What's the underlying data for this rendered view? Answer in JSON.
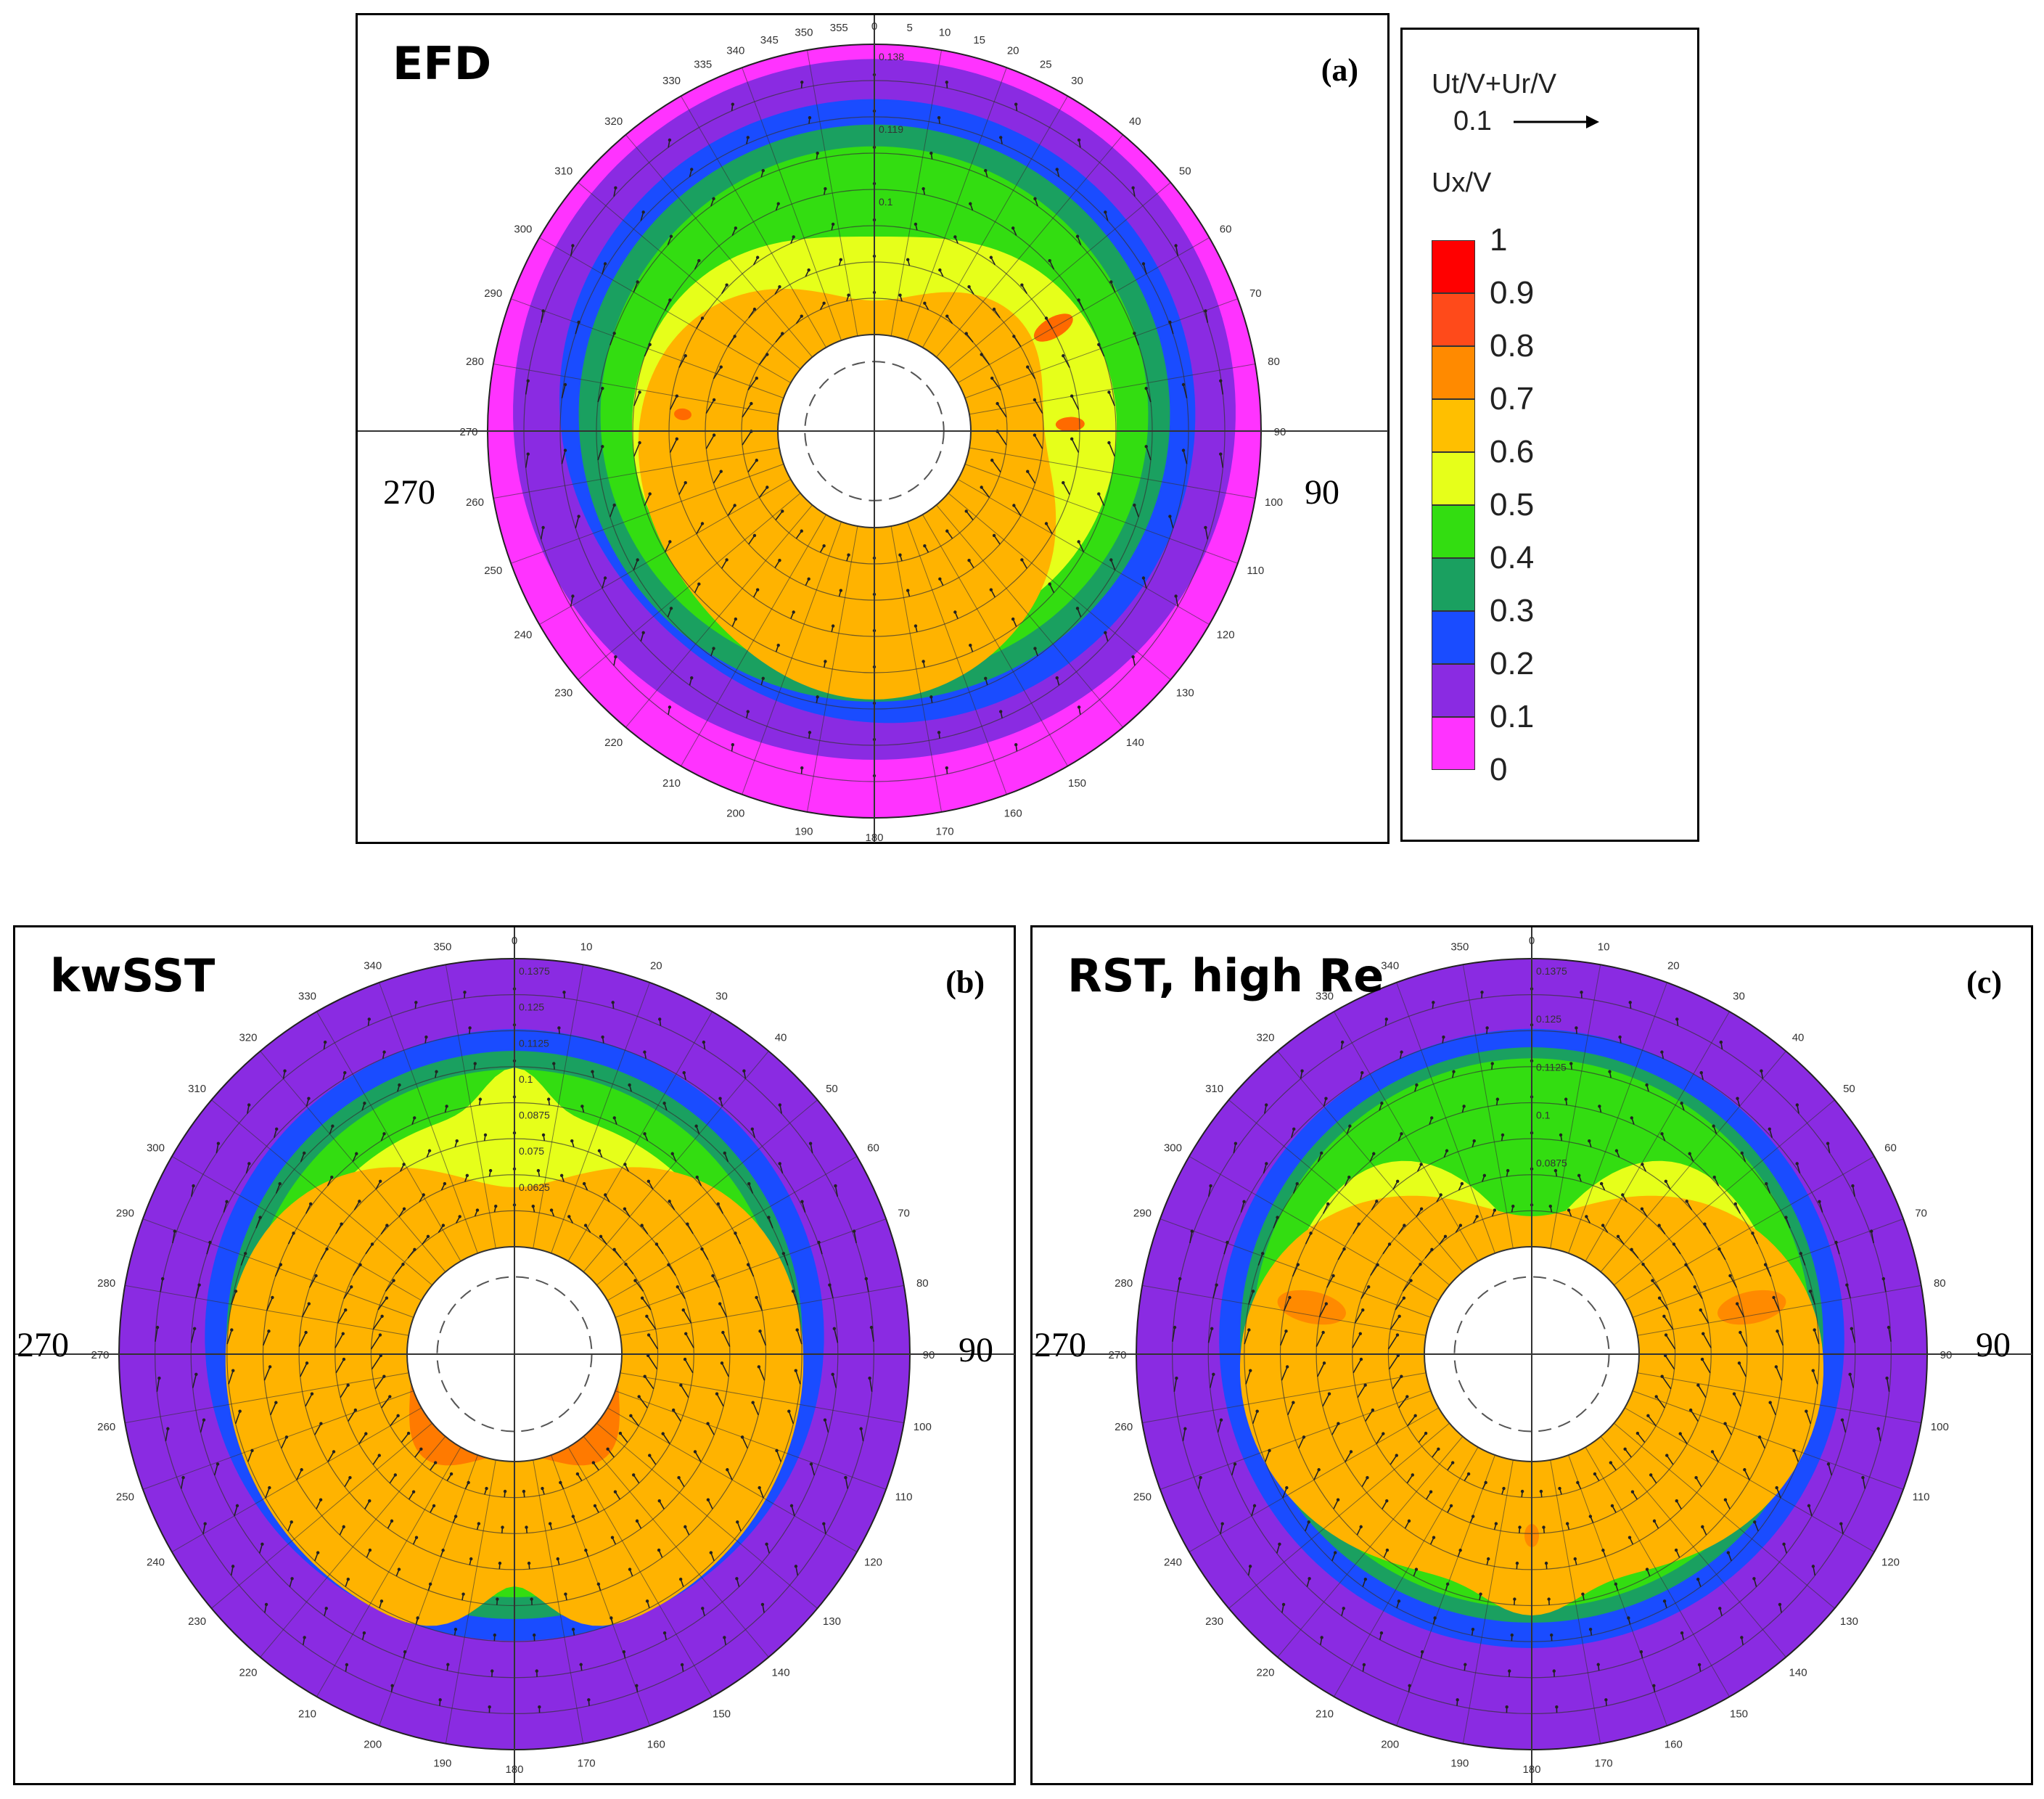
{
  "chart_data": [
    {
      "type": "heatmap",
      "panel": "a",
      "title": "EFD",
      "letter": "(a)",
      "left_label": "270",
      "right_label": "90",
      "angle_ticks": [
        0,
        5,
        10,
        15,
        20,
        25,
        30,
        40,
        50,
        60,
        70,
        80,
        90,
        100,
        110,
        120,
        130,
        140,
        150,
        160,
        170,
        180,
        190,
        200,
        210,
        220,
        230,
        240,
        250,
        260,
        270,
        280,
        290,
        300,
        310,
        320,
        330,
        335,
        340,
        345,
        350,
        355
      ],
      "radius_ticks": [
        "0.138",
        "0.119",
        "0.1"
      ],
      "contour_bands": [
        {
          "level": 0.0,
          "color": "#ff33ff"
        },
        {
          "level": 0.1,
          "color": "#8a2be2"
        },
        {
          "level": 0.2,
          "color": "#1a4cff"
        },
        {
          "level": 0.3,
          "color": "#1aa060"
        },
        {
          "level": 0.4,
          "color": "#33dd11"
        },
        {
          "level": 0.5,
          "color": "#e6ff1a"
        },
        {
          "level": 0.7,
          "color": "#ffb300"
        }
      ]
    },
    {
      "type": "heatmap",
      "panel": "b",
      "title": "kwSST",
      "letter": "(b)",
      "left_label": "270",
      "right_label": "90",
      "angle_ticks": [
        0,
        10,
        20,
        30,
        40,
        50,
        60,
        70,
        80,
        90,
        100,
        110,
        120,
        130,
        140,
        150,
        160,
        170,
        180,
        190,
        200,
        210,
        220,
        230,
        240,
        250,
        260,
        270,
        280,
        290,
        300,
        310,
        320,
        330,
        340,
        350
      ],
      "radius_ticks": [
        "0.1375",
        "0.125",
        "0.1125",
        "0.1",
        "0.0875",
        "0.075",
        "0.0625"
      ],
      "contour_bands": [
        {
          "level": 0.1,
          "color": "#8a2be2"
        },
        {
          "level": 0.2,
          "color": "#1a4cff"
        },
        {
          "level": 0.3,
          "color": "#1aa060"
        },
        {
          "level": 0.4,
          "color": "#33dd11"
        },
        {
          "level": 0.5,
          "color": "#e6ff1a"
        },
        {
          "level": 0.7,
          "color": "#ffb300"
        },
        {
          "level": 0.8,
          "color": "#ff7a00"
        }
      ]
    },
    {
      "type": "heatmap",
      "panel": "c",
      "title": "RST, high Re",
      "letter": "(c)",
      "left_label": "270",
      "right_label": "90",
      "angle_ticks": [
        0,
        10,
        20,
        30,
        40,
        50,
        60,
        70,
        80,
        90,
        100,
        110,
        120,
        130,
        140,
        150,
        160,
        170,
        180,
        190,
        200,
        210,
        220,
        230,
        240,
        250,
        260,
        270,
        280,
        290,
        300,
        310,
        320,
        330,
        340,
        350
      ],
      "radius_ticks": [
        "0.1375",
        "0.125",
        "0.1125",
        "0.1",
        "0.0875"
      ],
      "contour_bands": [
        {
          "level": 0.1,
          "color": "#8a2be2"
        },
        {
          "level": 0.2,
          "color": "#1a4cff"
        },
        {
          "level": 0.3,
          "color": "#1aa060"
        },
        {
          "level": 0.4,
          "color": "#33dd11"
        },
        {
          "level": 0.5,
          "color": "#e6ff1a"
        },
        {
          "level": 0.7,
          "color": "#ffb300"
        }
      ]
    }
  ],
  "legend": {
    "vector_title": "Ut/V+Ur/V",
    "vector_ref": "0.1",
    "scalar_title": "Ux/V",
    "levels": [
      "1",
      "0.9",
      "0.8",
      "0.7",
      "0.6",
      "0.5",
      "0.4",
      "0.3",
      "0.2",
      "0.1",
      "0"
    ],
    "colors": [
      "#ff0000",
      "#ff4a1a",
      "#ff8a00",
      "#ffbf00",
      "#e6ff1a",
      "#33dd11",
      "#1aa060",
      "#1a4cff",
      "#8a2be2",
      "#ff33ff",
      "#ff33ff"
    ]
  }
}
